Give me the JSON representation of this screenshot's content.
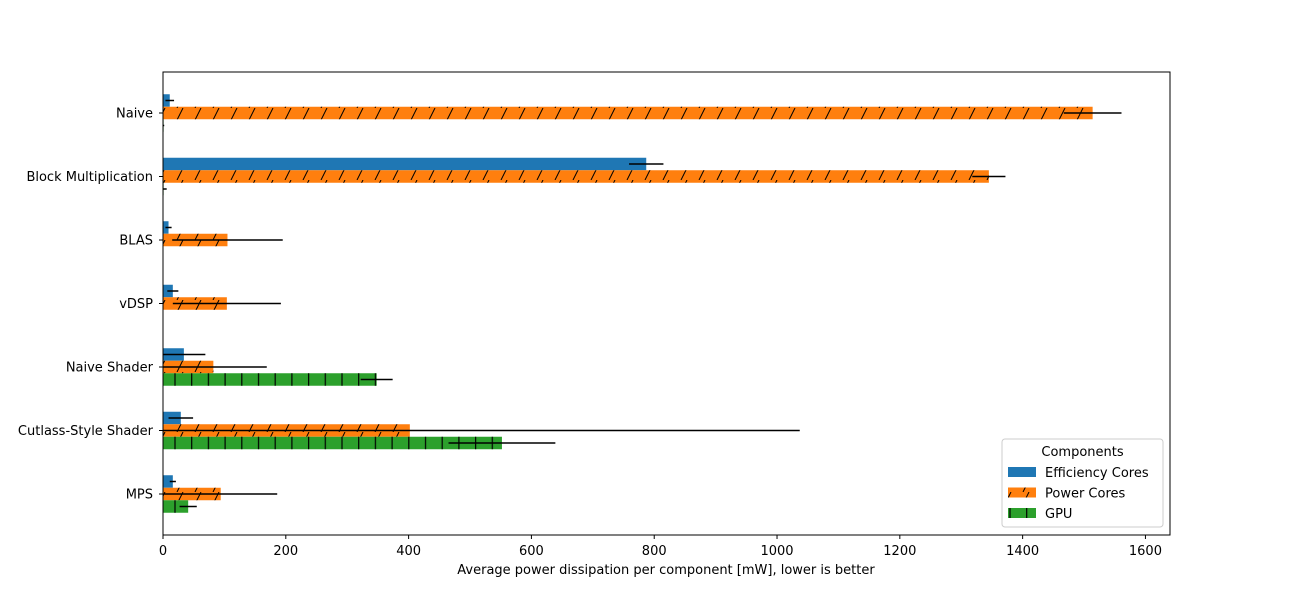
{
  "chart_data": {
    "type": "bar",
    "orientation": "horizontal",
    "title": "",
    "xlabel": "Average power dissipation per component [mW], lower is better",
    "ylabel": "",
    "xlim": [
      0,
      1640
    ],
    "xticks": [
      0,
      200,
      400,
      600,
      800,
      1000,
      1200,
      1400,
      1600
    ],
    "grid": false,
    "categories": [
      "Naive",
      "Block Multiplication",
      "BLAS",
      "vDSP",
      "Naive Shader",
      "Cutlass-Style Shader",
      "MPS"
    ],
    "series": [
      {
        "name": "Efficiency Cores",
        "color": "#1f77b4",
        "hatch": "none",
        "values": [
          11,
          787,
          9,
          16,
          34,
          29,
          16
        ],
        "errors": [
          7,
          28,
          5,
          9,
          35,
          20,
          5
        ]
      },
      {
        "name": "Power Cores",
        "color": "#ff7f0e",
        "hatch": "diagonal",
        "values": [
          1514,
          1345,
          105,
          104,
          82,
          402,
          94
        ],
        "errors": [
          47,
          27,
          90,
          88,
          87,
          635,
          92
        ]
      },
      {
        "name": "GPU",
        "color": "#2ca02c",
        "hatch": "vertical",
        "values": [
          1,
          1,
          0,
          0,
          348,
          552,
          41
        ],
        "errors": [
          1,
          5,
          0,
          0,
          26,
          87,
          14
        ]
      }
    ],
    "legend": {
      "title": "Components",
      "placement": "lower right"
    }
  }
}
